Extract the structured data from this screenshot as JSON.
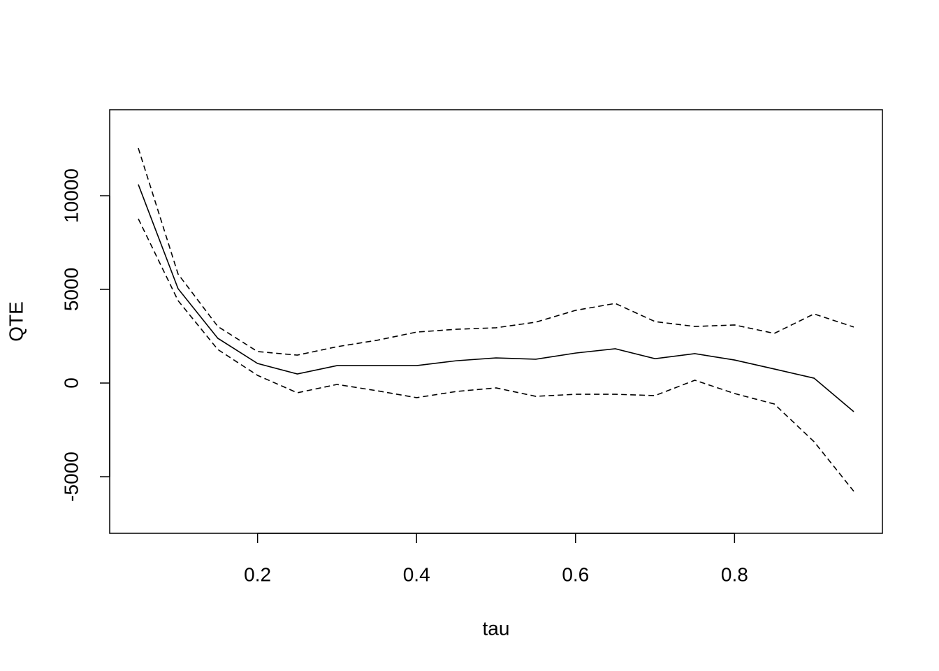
{
  "chart_data": {
    "type": "line",
    "xlabel": "tau",
    "ylabel": "QTE",
    "x": [
      0.05,
      0.1,
      0.15,
      0.2,
      0.25,
      0.3,
      0.35,
      0.4,
      0.45,
      0.5,
      0.55,
      0.6,
      0.65,
      0.7,
      0.75,
      0.8,
      0.85,
      0.9,
      0.95
    ],
    "series": [
      {
        "color": "#000000",
        "dash": "solid",
        "values": [
          10600,
          5040,
          2390,
          1045,
          485,
          930,
          930,
          930,
          1190,
          1340,
          1270,
          1600,
          1830,
          1300,
          1570,
          1230,
          750,
          260,
          -1530
        ]
      },
      {
        "color": "#000000",
        "dash": "dashed",
        "values": [
          12540,
          5820,
          3020,
          1680,
          1490,
          1940,
          2280,
          2720,
          2870,
          2950,
          3250,
          3880,
          4250,
          3280,
          3020,
          3100,
          2650,
          3690,
          2990
        ]
      },
      {
        "color": "#000000",
        "dash": "dashed",
        "values": [
          8770,
          4400,
          1790,
          410,
          -520,
          -75,
          -410,
          -780,
          -450,
          -260,
          -710,
          -600,
          -600,
          -670,
          150,
          -560,
          -1120,
          -3130,
          -5780
        ]
      }
    ],
    "xlim": [
      0.014,
      0.986
    ],
    "xticks": [
      0.2,
      0.4,
      0.6,
      0.8
    ],
    "ylim": [
      -8022,
      14590
    ],
    "yticks": [
      -5000,
      0,
      5000,
      10000
    ],
    "grid": false
  }
}
